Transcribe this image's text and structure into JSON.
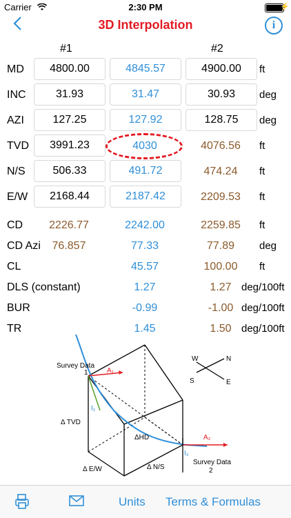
{
  "status": {
    "carrier": "Carrier",
    "time": "2:30 PM"
  },
  "nav": {
    "title": "3D Interpolation",
    "back_icon": "chevron-left-icon",
    "info_icon": "info-icon"
  },
  "columns": {
    "c1": "#1",
    "c2": "#2"
  },
  "rows": [
    {
      "label": "MD",
      "v1": "4800.00",
      "mid": "4845.57",
      "v2": "4900.00",
      "unit": "ft"
    },
    {
      "label": "INC",
      "v1": "31.93",
      "mid": "31.47",
      "v2": "30.93",
      "unit": "deg"
    },
    {
      "label": "AZI",
      "v1": "127.25",
      "mid": "127.92",
      "v2": "128.75",
      "unit": "deg"
    },
    {
      "label": "TVD",
      "v1": "3991.23",
      "mid": "4030",
      "v2": "4076.56",
      "unit": "ft"
    },
    {
      "label": "N/S",
      "v1": "506.33",
      "mid": "491.72",
      "v2": "474.24",
      "unit": "ft"
    },
    {
      "label": "E/W",
      "v1": "2168.44",
      "mid": "2187.42",
      "v2": "2209.53",
      "unit": "ft"
    }
  ],
  "results": [
    {
      "label": "CD",
      "v1": "2226.77",
      "mid": "2242.00",
      "v2": "2259.85",
      "unit": "ft"
    },
    {
      "label": "CD Azi",
      "v1": "76.857",
      "mid": "77.33",
      "v2": "77.89",
      "unit": "deg"
    },
    {
      "label": "CL",
      "v1": "",
      "mid": "45.57",
      "v2": "100.00",
      "unit": "ft"
    },
    {
      "label": "DLS (constant)",
      "v1": "",
      "mid": "1.27",
      "v2": "1.27",
      "unit": "deg/100ft"
    },
    {
      "label": "BUR",
      "v1": "",
      "mid": "-0.99",
      "v2": "-1.00",
      "unit": "deg/100ft"
    },
    {
      "label": "TR",
      "v1": "",
      "mid": "1.45",
      "v2": "1.50",
      "unit": "deg/100ft"
    }
  ],
  "diagram": {
    "survey1": "Survey Data",
    "point1": "1",
    "survey2": "Survey Data",
    "point2": "2",
    "a1": "A₁",
    "a2": "A₂",
    "i1": "I₁",
    "i2": "I₂",
    "tvd": "Δ TVD",
    "hd": "ΔHD",
    "ew": "Δ E/W",
    "ns": "Δ N/S",
    "w": "W",
    "n": "N",
    "s": "S",
    "e": "E"
  },
  "tabbar": {
    "print_icon": "print-icon",
    "mail_icon": "mail-icon",
    "units": "Units",
    "terms": "Terms & Formulas"
  },
  "colors": {
    "accent": "#2f8fd8",
    "title": "#e31b23",
    "brown": "#8b5a2b"
  }
}
